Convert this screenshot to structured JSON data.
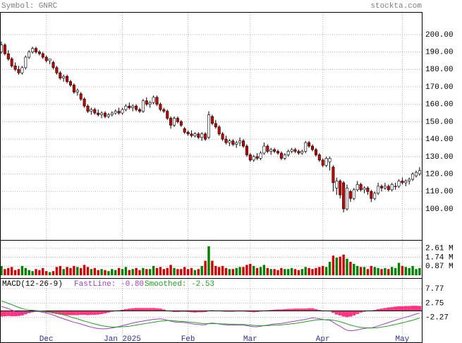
{
  "chart_data": {
    "type": "candlestick",
    "header": {
      "symbol": "Symbol: GNRC",
      "site": "stockta.com"
    },
    "x_labels": [
      {
        "index": 13,
        "label": "Dec"
      },
      {
        "index": 35,
        "label": "Jan 2025"
      },
      {
        "index": 54,
        "label": "Feb"
      },
      {
        "index": 72,
        "label": "Mar"
      },
      {
        "index": 93,
        "label": "Apr"
      },
      {
        "index": 116,
        "label": "May"
      }
    ],
    "up_color": "#ffffff",
    "down_color": "#cc0000",
    "ylim": [
      82.2,
      212.5
    ],
    "yticks": [
      {
        "value": 100,
        "label": "100.00"
      },
      {
        "value": 110,
        "label": "110.00"
      },
      {
        "value": 120,
        "label": "120.00"
      },
      {
        "value": 130,
        "label": "130.00"
      },
      {
        "value": 140,
        "label": "140.00"
      },
      {
        "value": 150,
        "label": "150.00"
      },
      {
        "value": 160,
        "label": "160.00"
      },
      {
        "value": 170,
        "label": "170.00"
      },
      {
        "value": 180,
        "label": "180.00"
      },
      {
        "value": 190,
        "label": "190.00"
      },
      {
        "value": 200,
        "label": "200.00"
      }
    ],
    "candles": [
      [
        190,
        196,
        189,
        194
      ],
      [
        194,
        195,
        188,
        189
      ],
      [
        189,
        191,
        185,
        186
      ],
      [
        186,
        187,
        181,
        182
      ],
      [
        182,
        184,
        179,
        180
      ],
      [
        180,
        182,
        177,
        178
      ],
      [
        178,
        182,
        177,
        181
      ],
      [
        181,
        188,
        180,
        187
      ],
      [
        187,
        191,
        186,
        190
      ],
      [
        190,
        193,
        189,
        192
      ],
      [
        192,
        193,
        189,
        190
      ],
      [
        190,
        191,
        188,
        189
      ],
      [
        189,
        190,
        186,
        187
      ],
      [
        187,
        188,
        184,
        185
      ],
      [
        185,
        186,
        183,
        186
      ],
      [
        184,
        185,
        180,
        181
      ],
      [
        181,
        182,
        177,
        178
      ],
      [
        178,
        179,
        174,
        175
      ],
      [
        175,
        177,
        173,
        176
      ],
      [
        176,
        177,
        172,
        173
      ],
      [
        173,
        174,
        170,
        171
      ],
      [
        171,
        172,
        166,
        167
      ],
      [
        167,
        169,
        165,
        168
      ],
      [
        166,
        167,
        162,
        163
      ],
      [
        163,
        164,
        158,
        159
      ],
      [
        159,
        160,
        155,
        156
      ],
      [
        156,
        158,
        154,
        157
      ],
      [
        157,
        158,
        154,
        155
      ],
      [
        155,
        157,
        153,
        154
      ],
      [
        154,
        156,
        152,
        155
      ],
      [
        155,
        156,
        152,
        153
      ],
      [
        153,
        155,
        152,
        154
      ],
      [
        154,
        156,
        153,
        155
      ],
      [
        155,
        157,
        154,
        156
      ],
      [
        156,
        158,
        154,
        155
      ],
      [
        155,
        158,
        154,
        157
      ],
      [
        157,
        160,
        156,
        159
      ],
      [
        159,
        161,
        157,
        158
      ],
      [
        158,
        160,
        156,
        159
      ],
      [
        159,
        160,
        156,
        157
      ],
      [
        157,
        158,
        155,
        156
      ],
      [
        156,
        163,
        155,
        162
      ],
      [
        162,
        164,
        159,
        160
      ],
      [
        160,
        162,
        158,
        161
      ],
      [
        161,
        165,
        160,
        164
      ],
      [
        164,
        165,
        159,
        160
      ],
      [
        160,
        161,
        156,
        157
      ],
      [
        157,
        158,
        155,
        156
      ],
      [
        156,
        157,
        151,
        152
      ],
      [
        152,
        153,
        146,
        148
      ],
      [
        148,
        153,
        147,
        152
      ],
      [
        152,
        153,
        149,
        150
      ],
      [
        150,
        151,
        147,
        148
      ],
      [
        146,
        147,
        143,
        144
      ],
      [
        144,
        145,
        142,
        143
      ],
      [
        143,
        145,
        141,
        142
      ],
      [
        142,
        144,
        141,
        143
      ],
      [
        143,
        144,
        140,
        141
      ],
      [
        141,
        144,
        139,
        143
      ],
      [
        143,
        144,
        139,
        140
      ],
      [
        141,
        156,
        140,
        154
      ],
      [
        153,
        154,
        148,
        149
      ],
      [
        149,
        151,
        146,
        147
      ],
      [
        147,
        148,
        142,
        143
      ],
      [
        143,
        144,
        139,
        140
      ],
      [
        140,
        142,
        137,
        138
      ],
      [
        138,
        140,
        136,
        139
      ],
      [
        139,
        140,
        136,
        137
      ],
      [
        137,
        139,
        135,
        138
      ],
      [
        138,
        141,
        136,
        139
      ],
      [
        139,
        140,
        135,
        136
      ],
      [
        136,
        137,
        130,
        131
      ],
      [
        131,
        132,
        127,
        128
      ],
      [
        128,
        131,
        127,
        130
      ],
      [
        130,
        132,
        128,
        129
      ],
      [
        129,
        133,
        128,
        132
      ],
      [
        132,
        138,
        131,
        136
      ],
      [
        136,
        137,
        132,
        133
      ],
      [
        133,
        135,
        131,
        134
      ],
      [
        134,
        135,
        132,
        133
      ],
      [
        133,
        134,
        131,
        132
      ],
      [
        132,
        133,
        128,
        129
      ],
      [
        129,
        132,
        128,
        131
      ],
      [
        131,
        134,
        130,
        133
      ],
      [
        133,
        135,
        132,
        134
      ],
      [
        134,
        135,
        132,
        133
      ],
      [
        133,
        134,
        131,
        132
      ],
      [
        132,
        134,
        131,
        133
      ],
      [
        133,
        139,
        132,
        138
      ],
      [
        138,
        139,
        135,
        136
      ],
      [
        136,
        137,
        133,
        134
      ],
      [
        134,
        135,
        130,
        131
      ],
      [
        131,
        132,
        127,
        128
      ],
      [
        128,
        129,
        124,
        125
      ],
      [
        125,
        130,
        124,
        129
      ],
      [
        127,
        130,
        122,
        129
      ],
      [
        124,
        125,
        110,
        115
      ],
      [
        112,
        118,
        108,
        116
      ],
      [
        116,
        117,
        106,
        108
      ],
      [
        115,
        116,
        98,
        100
      ],
      [
        100,
        114,
        99,
        112
      ],
      [
        110,
        111,
        104,
        106
      ],
      [
        106,
        112,
        105,
        111
      ],
      [
        111,
        116,
        110,
        114
      ],
      [
        114,
        115,
        110,
        111
      ],
      [
        111,
        113,
        109,
        112
      ],
      [
        112,
        113,
        108,
        110
      ],
      [
        110,
        111,
        104,
        106
      ],
      [
        106,
        110,
        105,
        109
      ],
      [
        109,
        115,
        108,
        113
      ],
      [
        113,
        114,
        110,
        112
      ],
      [
        112,
        115,
        111,
        113
      ],
      [
        113,
        114,
        110,
        111
      ],
      [
        111,
        115,
        110,
        114
      ],
      [
        113,
        115,
        111,
        113
      ],
      [
        113,
        117,
        112,
        116
      ],
      [
        116,
        118,
        114,
        115
      ],
      [
        115,
        117,
        113,
        116
      ],
      [
        116,
        118,
        114,
        117
      ],
      [
        117,
        121,
        116,
        120
      ],
      [
        119,
        122,
        118,
        121
      ],
      [
        120,
        124,
        119,
        122
      ]
    ],
    "volume": {
      "up_color": "#008000",
      "down_color": "#cc0000",
      "ylim": [
        0,
        3.35
      ],
      "ticks": [
        {
          "value": 0.87,
          "label": "0.87 M"
        },
        {
          "value": 1.74,
          "label": "1.74 M"
        },
        {
          "value": 2.61,
          "label": "2.61 M"
        }
      ],
      "values": [
        0.9,
        0.6,
        0.7,
        0.8,
        0.5,
        0.6,
        0.9,
        0.7,
        0.5,
        0.4,
        0.6,
        0.5,
        0.7,
        0.4,
        0.3,
        0.4,
        0.8,
        0.9,
        0.6,
        0.8,
        0.7,
        0.9,
        0.8,
        0.7,
        1.0,
        0.8,
        0.6,
        0.7,
        0.5,
        0.6,
        0.5,
        0.4,
        0.6,
        0.5,
        0.7,
        0.6,
        0.8,
        0.5,
        0.6,
        0.7,
        0.5,
        0.7,
        0.6,
        0.6,
        0.9,
        0.7,
        0.8,
        0.6,
        0.7,
        1.0,
        0.7,
        0.6,
        0.6,
        0.8,
        0.6,
        0.7,
        0.5,
        0.6,
        0.9,
        1.4,
        2.8,
        1.4,
        0.9,
        0.8,
        0.9,
        0.7,
        0.6,
        0.6,
        0.7,
        0.8,
        0.8,
        1.0,
        1.1,
        0.9,
        0.7,
        0.8,
        1.0,
        0.7,
        0.6,
        0.6,
        0.5,
        0.7,
        0.6,
        0.6,
        0.7,
        0.6,
        0.5,
        0.6,
        0.8,
        0.7,
        0.6,
        0.7,
        0.8,
        0.9,
        0.8,
        1.3,
        1.9,
        1.7,
        1.8,
        2.0,
        1.6,
        1.3,
        1.1,
        0.9,
        0.8,
        0.8,
        0.6,
        0.9,
        0.8,
        0.7,
        0.6,
        0.7,
        0.6,
        0.8,
        0.7,
        1.2,
        0.9,
        0.8,
        0.7,
        0.9,
        0.6,
        0.7
      ]
    },
    "macd": {
      "title": "MACD(12-26-9)",
      "ylim": [
        -11.3,
        11.28
      ],
      "yticks": [
        -2.27,
        2.75,
        7.77
      ],
      "fast": {
        "name": "FastLine: -0.80",
        "color": "#a040c0",
        "values": [
          1.5,
          1.2,
          0.8,
          0.3,
          -0.2,
          -0.6,
          -0.8,
          -0.7,
          -0.5,
          -0.3,
          -0.2,
          -0.3,
          -0.5,
          -0.8,
          -1.1,
          -1.5,
          -1.9,
          -2.4,
          -2.8,
          -3.2,
          -3.6,
          -4.0,
          -4.3,
          -4.6,
          -5.0,
          -5.4,
          -5.7,
          -6.0,
          -6.2,
          -6.3,
          -6.3,
          -6.2,
          -6.0,
          -5.8,
          -5.5,
          -5.2,
          -4.9,
          -4.6,
          -4.3,
          -4.0,
          -3.8,
          -3.6,
          -3.4,
          -3.2,
          -3.0,
          -2.9,
          -2.8,
          -3.0,
          -3.3,
          -3.6,
          -3.9,
          -4.0,
          -4.0,
          -4.1,
          -4.3,
          -4.5,
          -4.7,
          -4.8,
          -4.9,
          -4.9,
          -4.4,
          -4.3,
          -4.4,
          -4.6,
          -4.8,
          -4.9,
          -5.0,
          -5.0,
          -5.0,
          -5.0,
          -5.0,
          -5.2,
          -5.4,
          -5.6,
          -5.6,
          -5.4,
          -5.2,
          -5.0,
          -4.8,
          -4.6,
          -4.5,
          -4.4,
          -4.2,
          -4.0,
          -3.8,
          -3.6,
          -3.4,
          -3.2,
          -3.0,
          -2.7,
          -2.5,
          -2.6,
          -2.8,
          -3.0,
          -3.2,
          -3.3,
          -4.0,
          -4.8,
          -5.4,
          -6.2,
          -6.8,
          -7.0,
          -6.9,
          -6.7,
          -6.4,
          -6.2,
          -6.0,
          -6.0,
          -5.7,
          -5.3,
          -4.9,
          -4.5,
          -4.1,
          -3.7,
          -3.3,
          -2.9,
          -2.6,
          -2.2,
          -1.9,
          -1.5,
          -1.1,
          -0.8
        ]
      },
      "signal": {
        "name": "Smoothed: -2.53",
        "color": "#20a020",
        "values": [
          3.5,
          3.1,
          2.6,
          2.2,
          1.7,
          1.2,
          0.8,
          0.5,
          0.3,
          0.2,
          0.1,
          0.0,
          -0.1,
          -0.2,
          -0.4,
          -0.6,
          -0.8,
          -1.1,
          -1.4,
          -1.7,
          -2.1,
          -2.5,
          -2.8,
          -3.2,
          -3.6,
          -3.9,
          -4.3,
          -4.6,
          -4.9,
          -5.2,
          -5.4,
          -5.6,
          -5.7,
          -5.7,
          -5.7,
          -5.6,
          -5.5,
          -5.4,
          -5.2,
          -5.0,
          -4.8,
          -4.6,
          -4.4,
          -4.2,
          -4.0,
          -3.8,
          -3.6,
          -3.5,
          -3.4,
          -3.4,
          -3.5,
          -3.6,
          -3.7,
          -3.8,
          -3.9,
          -4.0,
          -4.1,
          -4.3,
          -4.4,
          -4.5,
          -4.5,
          -4.5,
          -4.5,
          -4.5,
          -4.6,
          -4.6,
          -4.7,
          -4.7,
          -4.8,
          -4.8,
          -4.8,
          -4.9,
          -5.0,
          -5.1,
          -5.2,
          -5.2,
          -5.2,
          -5.2,
          -5.1,
          -5.0,
          -5.0,
          -4.9,
          -4.8,
          -4.7,
          -4.5,
          -4.4,
          -4.2,
          -4.0,
          -3.8,
          -3.6,
          -3.4,
          -3.2,
          -3.1,
          -3.1,
          -3.1,
          -3.1,
          -3.3,
          -3.5,
          -3.8,
          -4.2,
          -4.6,
          -5.0,
          -5.3,
          -5.6,
          -5.8,
          -5.9,
          -6.0,
          -6.0,
          -6.0,
          -5.9,
          -5.7,
          -5.5,
          -5.3,
          -5.0,
          -4.8,
          -4.5,
          -4.2,
          -3.9,
          -3.6,
          -3.3,
          -2.9,
          -2.53
        ]
      },
      "histogram": {
        "color": "#ff3380",
        "values": [
          -2.0,
          -1.9,
          -1.8,
          -1.9,
          -1.9,
          -1.8,
          -1.6,
          -1.2,
          -0.8,
          -0.5,
          -0.3,
          -0.3,
          -0.4,
          -0.6,
          -0.7,
          -0.9,
          -1.1,
          -1.3,
          -1.4,
          -1.5,
          -1.5,
          -1.5,
          -1.5,
          -1.4,
          -1.4,
          -1.5,
          -1.4,
          -1.4,
          -1.3,
          -1.1,
          -0.9,
          -0.6,
          -0.3,
          -0.1,
          0.2,
          0.4,
          0.6,
          0.8,
          0.9,
          1.0,
          1.0,
          1.0,
          1.0,
          1.0,
          1.0,
          0.9,
          0.8,
          0.5,
          0.1,
          -0.2,
          -0.4,
          -0.4,
          -0.3,
          -0.3,
          -0.4,
          -0.5,
          -0.6,
          -0.5,
          -0.5,
          -0.4,
          0.1,
          0.2,
          0.1,
          -0.1,
          -0.2,
          -0.3,
          -0.3,
          -0.3,
          -0.2,
          -0.2,
          -0.2,
          -0.3,
          -0.4,
          -0.5,
          -0.4,
          -0.2,
          0.0,
          0.2,
          0.3,
          0.4,
          0.5,
          0.5,
          0.6,
          0.7,
          0.7,
          0.8,
          0.8,
          0.8,
          0.8,
          0.9,
          0.9,
          0.6,
          0.3,
          0.1,
          -0.1,
          -0.2,
          -0.7,
          -1.3,
          -1.6,
          -2.0,
          -2.2,
          -2.0,
          -1.6,
          -1.1,
          -0.6,
          -0.3,
          0.0,
          0.0,
          0.3,
          0.6,
          0.8,
          1.0,
          1.2,
          1.3,
          1.5,
          1.6,
          1.6,
          1.7,
          1.7,
          1.8,
          1.8,
          1.73
        ]
      }
    }
  }
}
